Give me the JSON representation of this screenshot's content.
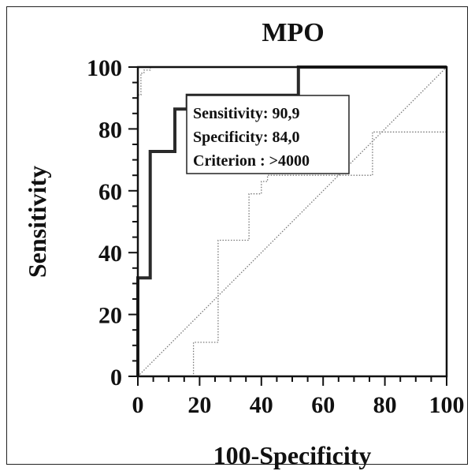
{
  "chart_data": {
    "type": "line",
    "title": "MPO",
    "xlabel": "100-Specificity",
    "ylabel": "Sensitivity",
    "xlim": [
      0,
      100
    ],
    "ylim": [
      0,
      100
    ],
    "xticks": [
      "0",
      "20",
      "40",
      "60",
      "80",
      "100"
    ],
    "yticks": [
      "0",
      "20",
      "40",
      "60",
      "80",
      "100"
    ],
    "grid": false,
    "annotation": [
      "Sensitivity: 90,9",
      "Specificity: 84,0",
      "Criterion : >4000"
    ],
    "series": [
      {
        "style": "solid-thick",
        "color": "#2a2a2a",
        "x": [
          0,
          0,
          4,
          4,
          12,
          12,
          16,
          16,
          52,
          52,
          100
        ],
        "y": [
          0,
          31.8,
          31.8,
          72.7,
          72.7,
          86.4,
          86.4,
          90.9,
          90.9,
          100,
          100
        ]
      },
      {
        "style": "dotted-upper",
        "color": "#777777",
        "x": [
          0,
          0,
          1,
          1,
          2,
          2,
          4,
          4,
          34,
          34,
          100
        ],
        "y": [
          0,
          91,
          91,
          98,
          98,
          99,
          99,
          100,
          100,
          100,
          100
        ]
      },
      {
        "style": "dotted-lower",
        "color": "#777777",
        "x": [
          0,
          18,
          18,
          26,
          26,
          36,
          36,
          40,
          40,
          42,
          42,
          72,
          72,
          76,
          76,
          100,
          100
        ],
        "y": [
          0,
          0,
          11,
          11,
          44,
          44,
          59,
          59,
          63,
          63,
          65,
          65,
          65,
          65,
          79,
          79,
          100
        ]
      },
      {
        "style": "diagonal-reference",
        "color": "#777777",
        "x": [
          0,
          100
        ],
        "y": [
          0,
          100
        ]
      }
    ]
  }
}
